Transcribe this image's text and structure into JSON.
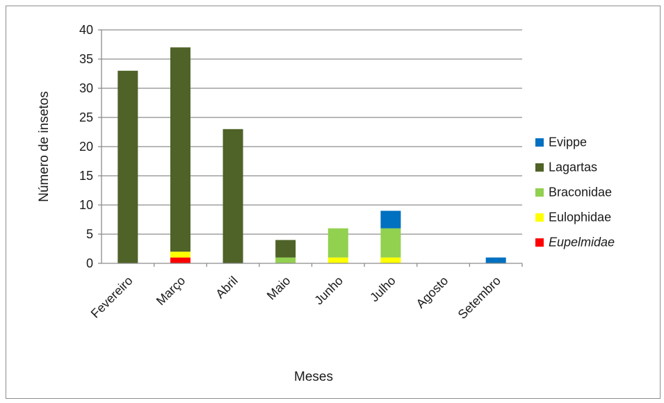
{
  "chart_data": {
    "type": "bar",
    "stacked": true,
    "title": "",
    "xlabel": "Meses",
    "ylabel": "Número de insetos",
    "ylim": [
      0,
      40
    ],
    "yticks": [
      0,
      5,
      10,
      15,
      20,
      25,
      30,
      35,
      40
    ],
    "grid": "horizontal",
    "legend_position": "right",
    "categories": [
      "Fevereiro",
      "Março",
      "Abril",
      "Maio",
      "Junho",
      "Julho",
      "Agosto",
      "Setembro"
    ],
    "series": [
      {
        "name": "Eupelmidae",
        "color": "#ff0000",
        "italic": true,
        "values": [
          0,
          1,
          0,
          0,
          0,
          0,
          0,
          0
        ]
      },
      {
        "name": "Eulophidae",
        "color": "#ffff00",
        "italic": false,
        "values": [
          0,
          1,
          0,
          0,
          1,
          1,
          0,
          0
        ]
      },
      {
        "name": "Braconidae",
        "color": "#92d050",
        "italic": false,
        "values": [
          0,
          0,
          0,
          1,
          5,
          5,
          0,
          0
        ]
      },
      {
        "name": "Lagartas",
        "color": "#4f6228",
        "italic": false,
        "values": [
          33,
          35,
          23,
          3,
          0,
          0,
          0,
          0
        ]
      },
      {
        "name": "Evippe",
        "color": "#0070c0",
        "italic": false,
        "values": [
          0,
          0,
          0,
          0,
          0,
          3,
          0,
          1
        ]
      }
    ],
    "legend_order": [
      "Evippe",
      "Lagartas",
      "Braconidae",
      "Eulophidae",
      "Eupelmidae"
    ]
  }
}
